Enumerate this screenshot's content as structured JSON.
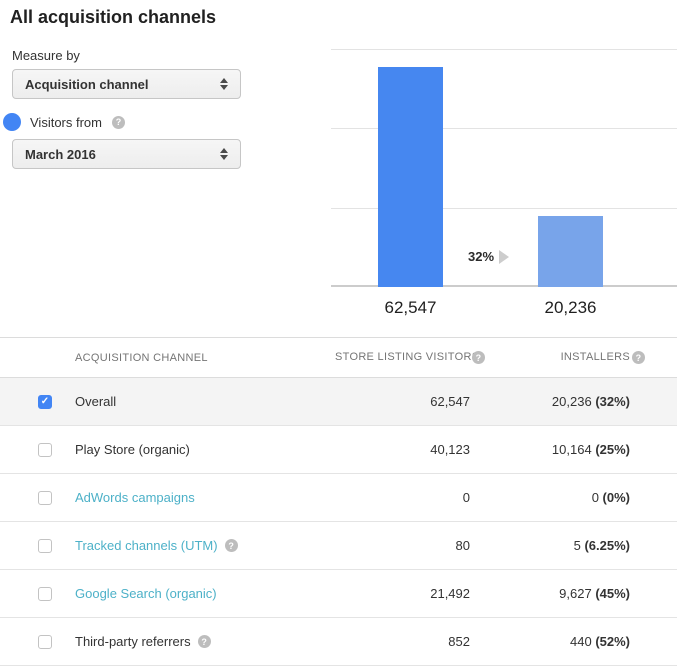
{
  "page": {
    "title": "All acquisition channels"
  },
  "filters": {
    "measure_by_label": "Measure by",
    "measure_by_value": "Acquisition channel",
    "series_label": "Visitors from",
    "period_value": "March 2016"
  },
  "chart_data": {
    "type": "bar",
    "categories": [
      "Store listing visitors",
      "Installers"
    ],
    "values": [
      62547,
      20236
    ],
    "value_labels": [
      "62,547",
      "20,236"
    ],
    "conversion_label": "32%",
    "ylim": [
      0,
      67500
    ],
    "grid": true,
    "legend": "none",
    "bar_colors": [
      "#4687f0",
      "#78a4ea"
    ]
  },
  "table": {
    "headers": {
      "channel": "ACQUISITION CHANNEL",
      "visitors": "STORE LISTING VISITORS",
      "installers": "INSTALLERS"
    },
    "rows": [
      {
        "channel": "Overall",
        "visitors": "62,547",
        "installers": "20,236",
        "pct": "(32%)",
        "checked": true,
        "selected": true,
        "link": false,
        "help": false
      },
      {
        "channel": "Play Store (organic)",
        "visitors": "40,123",
        "installers": "10,164",
        "pct": "(25%)",
        "checked": false,
        "selected": false,
        "link": false,
        "help": false
      },
      {
        "channel": "AdWords campaigns",
        "visitors": "0",
        "installers": "0",
        "pct": "(0%)",
        "checked": false,
        "selected": false,
        "link": true,
        "help": false
      },
      {
        "channel": "Tracked channels (UTM)",
        "visitors": "80",
        "installers": "5",
        "pct": "(6.25%)",
        "checked": false,
        "selected": false,
        "link": true,
        "help": true
      },
      {
        "channel": "Google Search (organic)",
        "visitors": "21,492",
        "installers": "9,627",
        "pct": "(45%)",
        "checked": false,
        "selected": false,
        "link": true,
        "help": false
      },
      {
        "channel": "Third-party referrers",
        "visitors": "852",
        "installers": "440",
        "pct": "(52%)",
        "checked": false,
        "selected": false,
        "link": false,
        "help": true
      }
    ]
  },
  "colors": {
    "accent": "#4285f4",
    "bar_primary": "#4687f0",
    "bar_secondary": "#78a4ea",
    "link": "#4db1c8"
  }
}
